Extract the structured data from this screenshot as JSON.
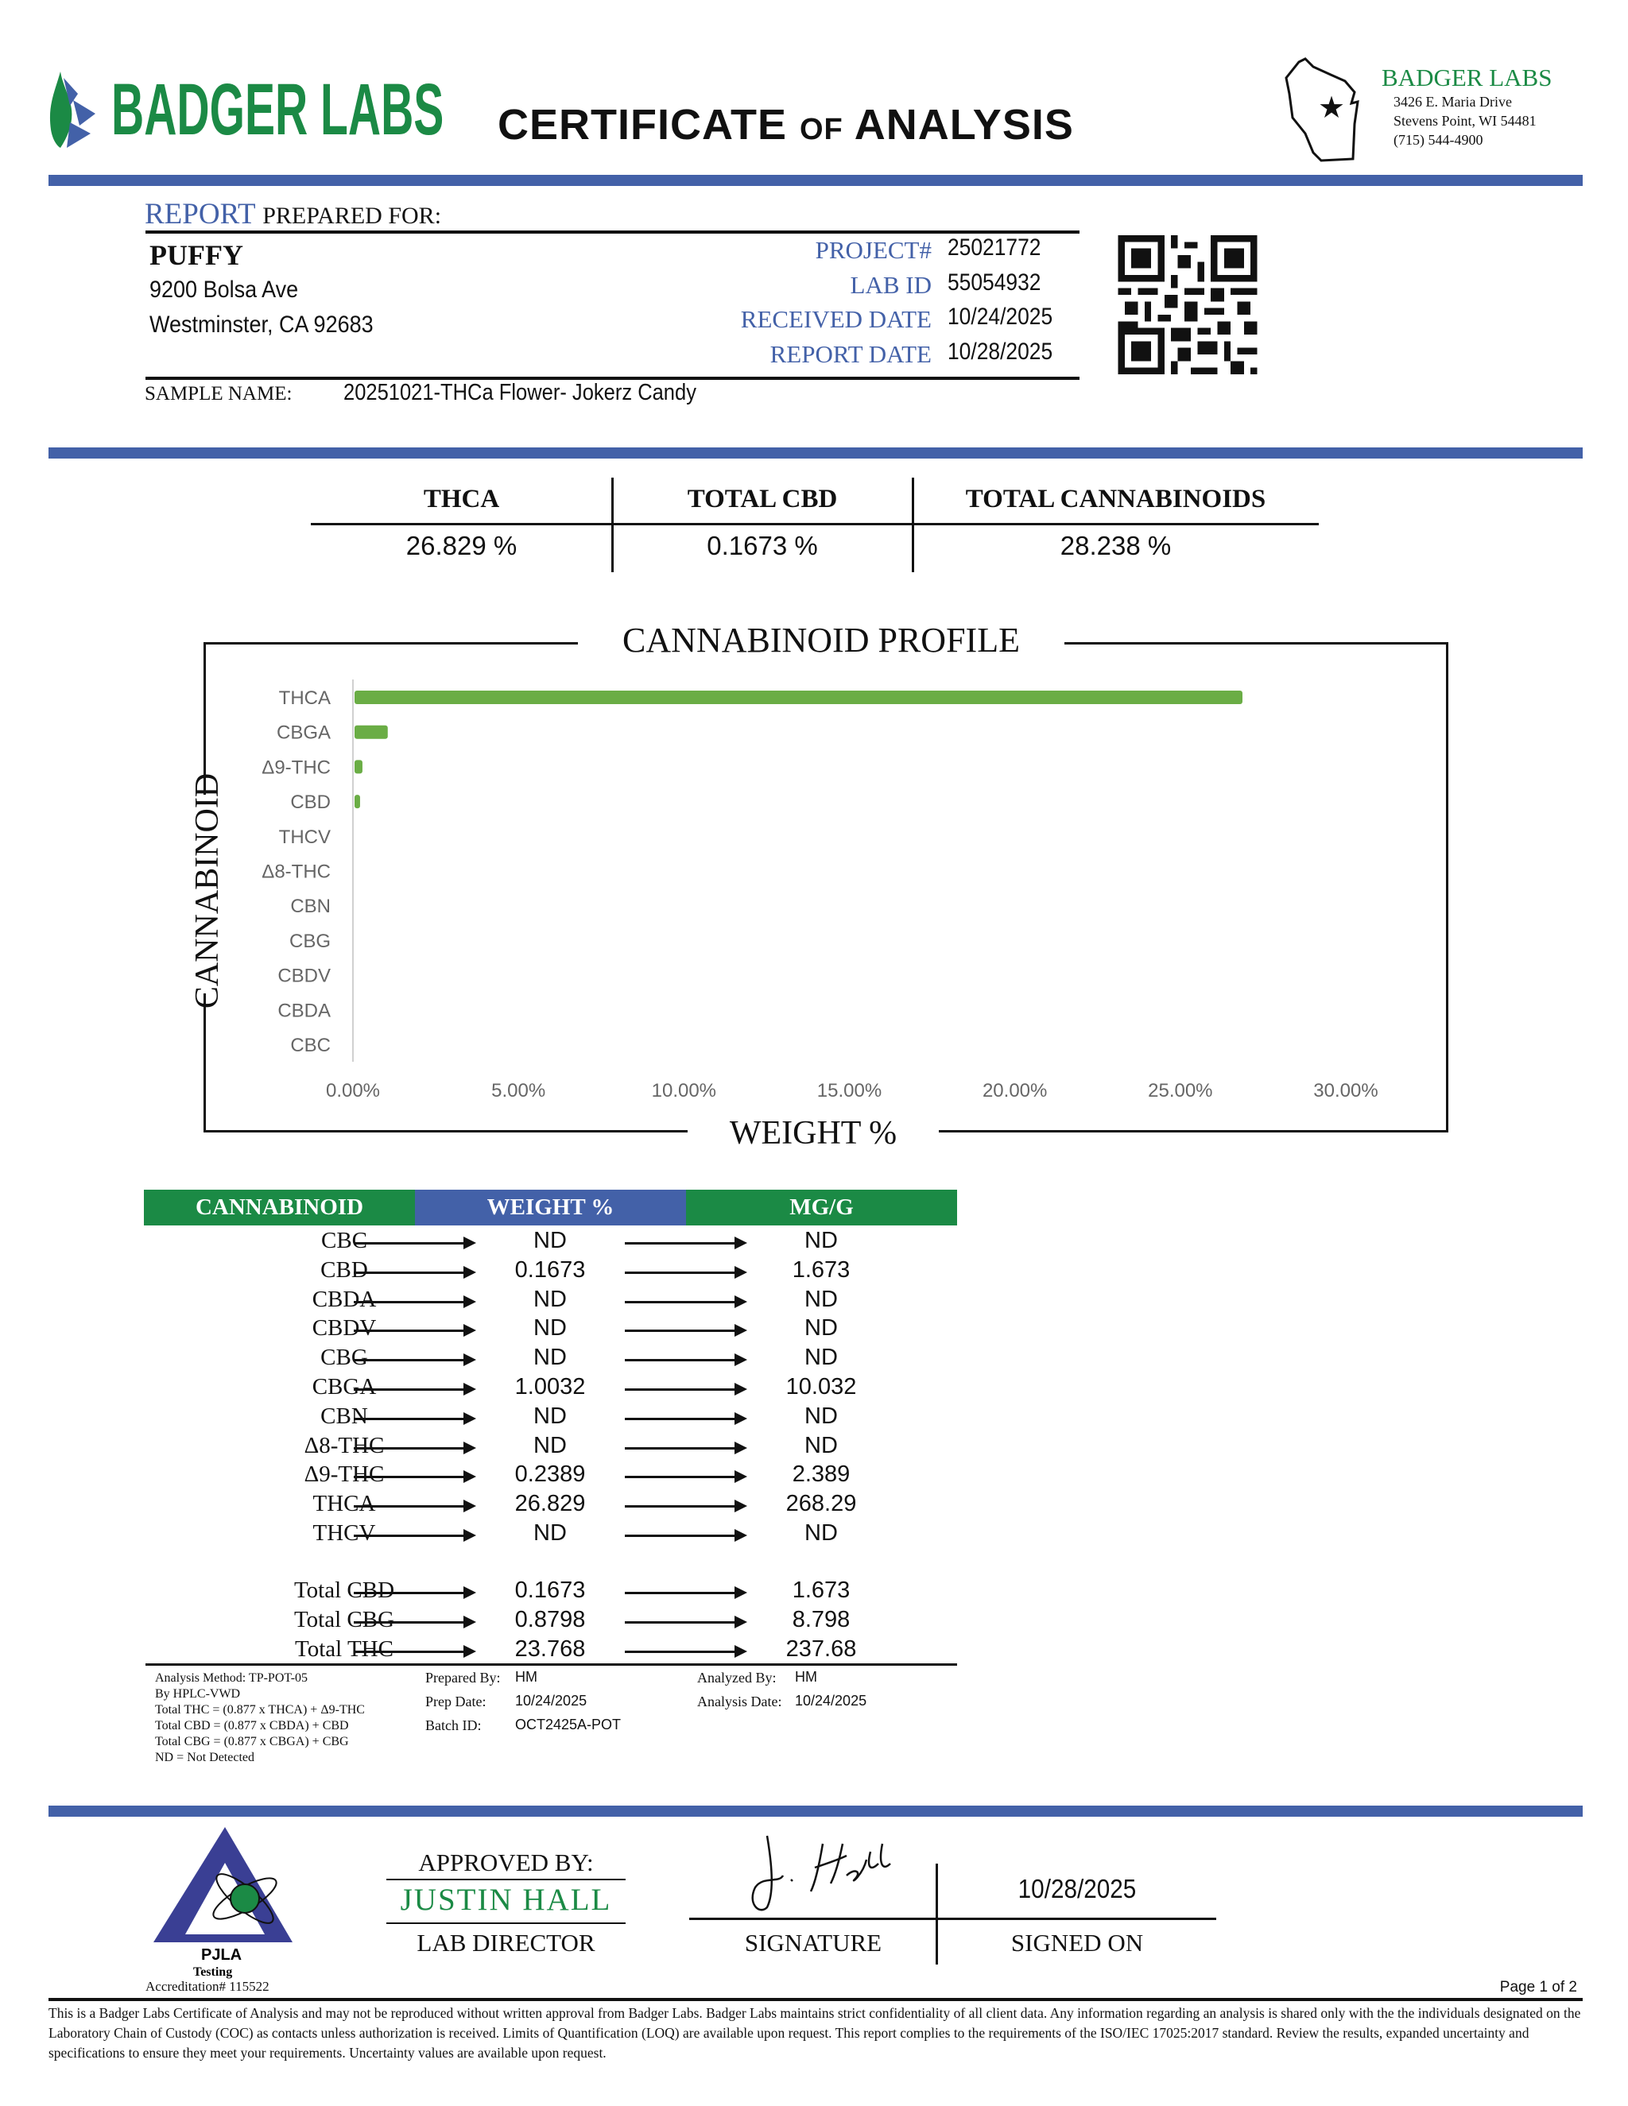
{
  "header": {
    "logo_text": "BADGER LABS",
    "title_main1": "CERTIFICATE",
    "title_of": "of",
    "title_main2": "ANALYSIS",
    "lab_name": "BADGER LABS",
    "address1": "3426 E. Maria Drive",
    "address2": "Stevens Point, WI 54481",
    "phone": "(715) 544-4900"
  },
  "client": {
    "report_word": "REPORT",
    "prepared_for": "PREPARED FOR:",
    "name": "PUFFY",
    "street": "9200 Bolsa Ave",
    "city": "Westminster, CA  92683",
    "sample_name_label": "SAMPLE NAME:",
    "sample_name": "20251021-THCa Flower- Jokerz Candy"
  },
  "report_info": [
    {
      "label": "PROJECT#",
      "value": "25021772"
    },
    {
      "label": "LAB ID",
      "value": "55054932"
    },
    {
      "label": "RECEIVED DATE",
      "value": "10/24/2025"
    },
    {
      "label": "REPORT DATE",
      "value": "10/28/2025"
    }
  ],
  "summary": [
    {
      "label": "THCA",
      "value": "26.829 %"
    },
    {
      "label": "TOTAL CBD",
      "value": "0.1673 %"
    },
    {
      "label": "TOTAL CANNABINOIDS",
      "value": "28.238 %"
    }
  ],
  "chart_data": {
    "type": "bar",
    "orientation": "horizontal",
    "title": "CANNABINOID PROFILE",
    "xlabel": "WEIGHT %",
    "ylabel": "CANNABINOID",
    "categories": [
      "THCA",
      "CBGA",
      "Δ9-THC",
      "CBD",
      "THCV",
      "Δ8-THC",
      "CBN",
      "CBG",
      "CBDV",
      "CBDA",
      "CBC"
    ],
    "values": [
      26.829,
      1.0032,
      0.2389,
      0.1673,
      0,
      0,
      0,
      0,
      0,
      0,
      0
    ],
    "xlim": [
      0,
      30
    ],
    "xticks": [
      "0.00%",
      "5.00%",
      "10.00%",
      "15.00%",
      "20.00%",
      "25.00%",
      "30.00%"
    ],
    "grid": false,
    "bar_color": "#6aad45"
  },
  "results_table": {
    "headers": [
      "CANNABINOID",
      "WEIGHT %",
      "MG/G"
    ],
    "header_colors": [
      "#1b8a45",
      "#4361a8",
      "#1b8a45"
    ],
    "rows": [
      {
        "name": "CBC",
        "weight": "ND",
        "mgg": "ND"
      },
      {
        "name": "CBD",
        "weight": "0.1673",
        "mgg": "1.673"
      },
      {
        "name": "CBDA",
        "weight": "ND",
        "mgg": "ND"
      },
      {
        "name": "CBDV",
        "weight": "ND",
        "mgg": "ND"
      },
      {
        "name": "CBG",
        "weight": "ND",
        "mgg": "ND"
      },
      {
        "name": "CBGA",
        "weight": "1.0032",
        "mgg": "10.032"
      },
      {
        "name": "CBN",
        "weight": "ND",
        "mgg": "ND"
      },
      {
        "name": "Δ8-THC",
        "weight": "ND",
        "mgg": "ND"
      },
      {
        "name": "Δ9-THC",
        "weight": "0.2389",
        "mgg": "2.389"
      },
      {
        "name": "THCA",
        "weight": "26.829",
        "mgg": "268.29"
      },
      {
        "name": "THCV",
        "weight": "ND",
        "mgg": "ND"
      }
    ],
    "totals": [
      {
        "name": "Total CBD",
        "weight": "0.1673",
        "mgg": "1.673"
      },
      {
        "name": "Total CBG",
        "weight": "0.8798",
        "mgg": "8.798"
      },
      {
        "name": "Total THC",
        "weight": "23.768",
        "mgg": "237.68"
      }
    ]
  },
  "notes": [
    "Analysis Method: TP-POT-05",
    "By HPLC-VWD",
    "Total THC = (0.877 x  THCA) + Δ9-THC",
    "Total CBD = (0.877 x  CBDA) + CBD",
    "Total CBG = (0.877 x  CBGA) + CBG",
    "ND = Not Detected"
  ],
  "prep": {
    "prepared_by_label": "Prepared By:",
    "prepared_by": "HM",
    "prep_date_label": "Prep Date:",
    "prep_date": "10/24/2025",
    "batch_id_label": "Batch ID:",
    "batch_id": "OCT2425A-POT",
    "analyzed_by_label": "Analyzed By:",
    "analyzed_by": "HM",
    "analysis_date_label": "Analysis Date:",
    "analysis_date": "10/24/2025"
  },
  "approval": {
    "approved_by": "APPROVED BY:",
    "approver": "JUSTIN HALL",
    "role": "LAB DIRECTOR",
    "signature_label": "SIGNATURE",
    "signed_on_label": "SIGNED ON",
    "signed_date": "10/28/2025"
  },
  "accreditation": {
    "logo_text": "PJLA",
    "logo_sub": "Testing",
    "number": "Accreditation# 115522"
  },
  "footer": {
    "page": "Page 1 of 2",
    "disclaimer": "This is a Badger Labs Certificate of Analysis and may not be reproduced without written approval from Badger Labs. Badger Labs maintains strict confidentiality of all client data. Any information regarding an analysis is shared only with the the individuals designated on the Laboratory Chain of Custody (COC) as contacts unless authorization is received. Limits of Quantification (LOQ) are available upon request. This report complies to the requirements of the ISO/IEC 17025:2017 standard. Review the results, expanded uncertainty and specifications to ensure they meet your requirements. Uncertainty values are available upon request."
  }
}
